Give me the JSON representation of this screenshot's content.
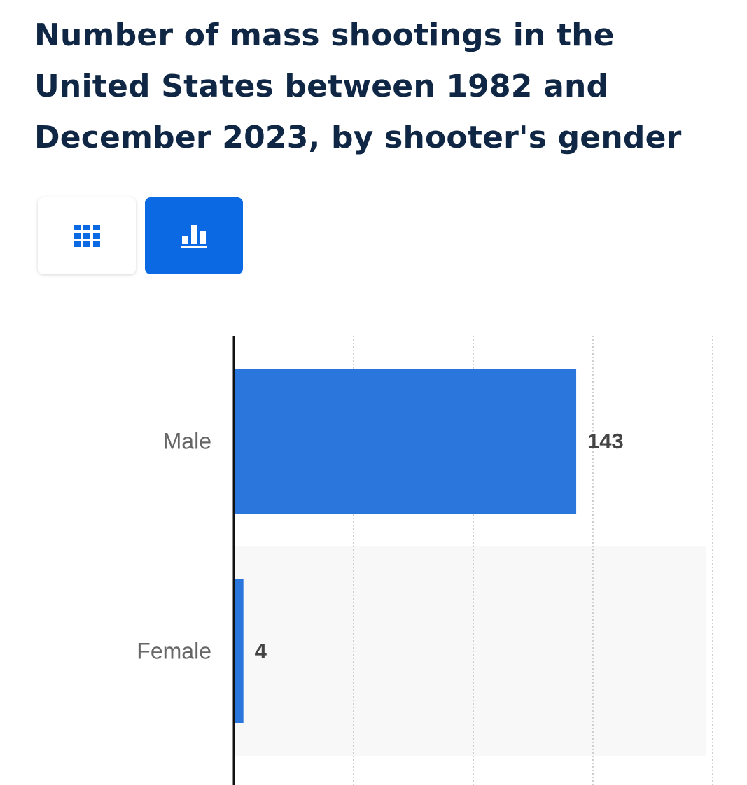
{
  "header": {
    "title_lines": [
      "Number of mass shootings in the",
      "United States between 1982 and",
      "December 2023, by shooter's gender"
    ]
  },
  "view_toggle": {
    "buttons": [
      {
        "icon": "table-grid-icon",
        "active": false
      },
      {
        "icon": "bar-chart-icon",
        "active": true
      }
    ],
    "active_color": "#0b69e3",
    "icon_color": "#0b69e3"
  },
  "chart_data": {
    "type": "bar",
    "orientation": "horizontal",
    "categories": [
      "Male",
      "Female"
    ],
    "values": [
      143,
      4
    ],
    "data_labels": [
      "143",
      "4"
    ],
    "xlim": [
      0,
      200
    ],
    "grid": true,
    "bar_color": "#2a76dc"
  }
}
